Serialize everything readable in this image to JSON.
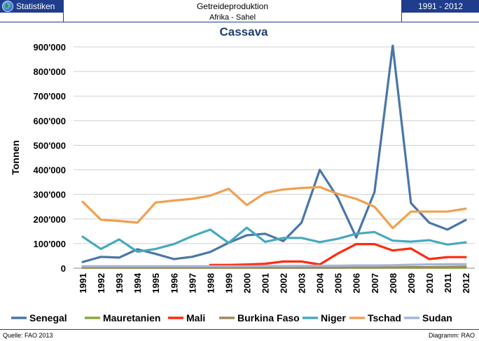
{
  "header": {
    "app_name": "Statistiken",
    "title": "Getreideproduktion",
    "subtitle": "Afrika - Sahel",
    "period": "1991 - 2012",
    "icon": "globe-icon"
  },
  "footer": {
    "source": "Quelle: FAO 2013",
    "credit": "Diagramm: RAO"
  },
  "chart_data": {
    "type": "line",
    "title": "Cassava",
    "ylabel": "Tonnen",
    "xlabel": "",
    "ylim": [
      0,
      900000
    ],
    "y_ticks": [
      0,
      100000,
      200000,
      300000,
      400000,
      500000,
      600000,
      700000,
      800000,
      900000
    ],
    "y_tick_labels": [
      "0",
      "100'000",
      "200'000",
      "300'000",
      "400'000",
      "500'000",
      "600'000",
      "700'000",
      "800'000",
      "900'000"
    ],
    "grid": true,
    "legend_position": "bottom",
    "x": [
      "1991",
      "1992",
      "1993",
      "1994",
      "1995",
      "1996",
      "1997",
      "1998",
      "1999",
      "2000",
      "2001",
      "2002",
      "2003",
      "2004",
      "2005",
      "2006",
      "2007",
      "2008",
      "2009",
      "2010",
      "2011",
      "2012"
    ],
    "series": [
      {
        "name": "Senegal",
        "color": "#4a76a8",
        "values": [
          25000,
          46000,
          43000,
          77000,
          58000,
          37000,
          46000,
          66000,
          103000,
          134000,
          140000,
          110000,
          185000,
          400000,
          285000,
          125000,
          310000,
          905000,
          265000,
          185000,
          157000,
          196000
        ]
      },
      {
        "name": "Mauretanien",
        "color": "#8aa83a",
        "values": [
          2000,
          2000,
          2000,
          2000,
          2000,
          2000,
          2000,
          2000,
          2000,
          2000,
          2000,
          2000,
          2000,
          2000,
          2000,
          2000,
          2000,
          2000,
          2000,
          2000,
          2000,
          2000
        ]
      },
      {
        "name": "Mali",
        "color": "#ff2a0f",
        "values": [
          null,
          null,
          null,
          null,
          null,
          null,
          null,
          13000,
          13000,
          15000,
          18000,
          27000,
          27000,
          15000,
          60000,
          98000,
          98000,
          72000,
          80000,
          37000,
          45000,
          45000
        ]
      },
      {
        "name": "Burkina Faso",
        "color": "#9b8a62",
        "values": [
          2000,
          2000,
          2000,
          2000,
          2000,
          2000,
          2000,
          2000,
          2000,
          2000,
          2000,
          2000,
          2000,
          2000,
          2000,
          3000,
          3000,
          3000,
          4000,
          4000,
          5000,
          6000
        ]
      },
      {
        "name": "Niger",
        "color": "#47a9bf",
        "values": [
          128000,
          78000,
          117000,
          67000,
          78000,
          98000,
          130000,
          157000,
          103000,
          165000,
          107000,
          123000,
          123000,
          106000,
          120000,
          140000,
          147000,
          112000,
          108000,
          114000,
          96000,
          105000
        ]
      },
      {
        "name": "Tschad",
        "color": "#f0a050",
        "values": [
          270000,
          197000,
          192000,
          185000,
          267000,
          275000,
          282000,
          295000,
          323000,
          257000,
          306000,
          320000,
          326000,
          330000,
          302000,
          282000,
          250000,
          163000,
          230000,
          230000,
          230000,
          242000
        ]
      },
      {
        "name": "Sudan",
        "color": "#a3b6d4",
        "values": [
          8000,
          8000,
          8000,
          8000,
          8000,
          8000,
          8000,
          8000,
          8000,
          8000,
          9000,
          9000,
          9000,
          10000,
          10000,
          11000,
          11000,
          12000,
          14000,
          15000,
          16000,
          16000
        ]
      }
    ]
  }
}
